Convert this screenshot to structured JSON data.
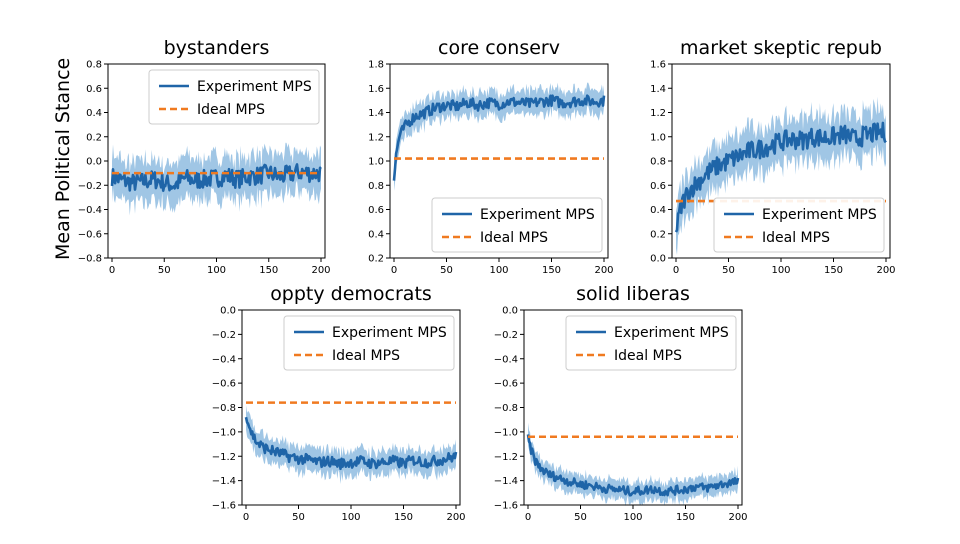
{
  "figure": {
    "ylabel": "Mean Political Stance"
  },
  "legend": {
    "experiment": "Experiment MPS",
    "ideal": "Ideal MPS"
  },
  "colors": {
    "experiment_line": "#1f65a8",
    "band": "#8fbce0",
    "ideal_line": "#f07a20",
    "axis": "#000000"
  },
  "chart_data": [
    {
      "type": "line",
      "title": "bystanders",
      "xlim": [
        0,
        200
      ],
      "ylim": [
        -0.8,
        0.8
      ],
      "xticks": [
        0,
        50,
        100,
        150,
        200
      ],
      "yticks": [
        -0.8,
        -0.6,
        -0.4,
        -0.2,
        0.0,
        0.2,
        0.4,
        0.6,
        0.8
      ],
      "ytick_labels": [
        "−0.8",
        "−0.6",
        "−0.4",
        "−0.2",
        "0.0",
        "0.2",
        "0.4",
        "0.6",
        "0.8"
      ],
      "legend_position": "top-right",
      "series": [
        {
          "name": "Experiment MPS",
          "x": [
            0,
            10,
            20,
            30,
            40,
            50,
            60,
            70,
            80,
            90,
            100,
            110,
            120,
            130,
            140,
            150,
            160,
            170,
            180,
            190,
            200
          ],
          "values": [
            -0.13,
            -0.16,
            -0.18,
            -0.17,
            -0.15,
            -0.18,
            -0.2,
            -0.14,
            -0.16,
            -0.15,
            -0.14,
            -0.12,
            -0.15,
            -0.13,
            -0.12,
            -0.1,
            -0.13,
            -0.11,
            -0.09,
            -0.1,
            -0.1
          ],
          "band_halfwidth": 0.17
        },
        {
          "name": "Ideal MPS",
          "x": [
            0,
            200
          ],
          "values": [
            -0.1,
            -0.1
          ]
        }
      ]
    },
    {
      "type": "line",
      "title": "core conserv",
      "xlim": [
        0,
        200
      ],
      "ylim": [
        0.2,
        1.8
      ],
      "xticks": [
        0,
        50,
        100,
        150,
        200
      ],
      "yticks": [
        0.2,
        0.4,
        0.6,
        0.8,
        1.0,
        1.2,
        1.4,
        1.6,
        1.8
      ],
      "ytick_labels": [
        "0.2",
        "0.4",
        "0.6",
        "0.8",
        "1.0",
        "1.2",
        "1.4",
        "1.6",
        "1.8"
      ],
      "legend_position": "bottom-right",
      "series": [
        {
          "name": "Experiment MPS",
          "x": [
            0,
            2,
            5,
            10,
            15,
            20,
            30,
            40,
            50,
            60,
            70,
            80,
            90,
            100,
            110,
            120,
            130,
            140,
            150,
            160,
            170,
            180,
            190,
            200
          ],
          "values": [
            0.85,
            1.05,
            1.2,
            1.28,
            1.33,
            1.37,
            1.4,
            1.44,
            1.46,
            1.45,
            1.48,
            1.46,
            1.48,
            1.47,
            1.49,
            1.48,
            1.47,
            1.49,
            1.5,
            1.48,
            1.49,
            1.5,
            1.49,
            1.5
          ],
          "band_halfwidth": 0.1
        },
        {
          "name": "Ideal MPS",
          "x": [
            0,
            200
          ],
          "values": [
            1.02,
            1.02
          ]
        }
      ]
    },
    {
      "type": "line",
      "title": "market skeptic repub",
      "xlim": [
        0,
        200
      ],
      "ylim": [
        0.0,
        1.6
      ],
      "xticks": [
        0,
        50,
        100,
        150,
        200
      ],
      "yticks": [
        0.0,
        0.2,
        0.4,
        0.6,
        0.8,
        1.0,
        1.2,
        1.4,
        1.6
      ],
      "ytick_labels": [
        "0.0",
        "0.2",
        "0.4",
        "0.6",
        "0.8",
        "1.0",
        "1.2",
        "1.4",
        "1.6"
      ],
      "legend_position": "bottom-right",
      "series": [
        {
          "name": "Experiment MPS",
          "x": [
            0,
            3,
            6,
            10,
            15,
            20,
            30,
            40,
            50,
            60,
            70,
            80,
            90,
            100,
            110,
            120,
            130,
            140,
            150,
            160,
            170,
            180,
            190,
            200
          ],
          "values": [
            0.2,
            0.35,
            0.45,
            0.52,
            0.58,
            0.62,
            0.7,
            0.76,
            0.8,
            0.84,
            0.88,
            0.9,
            0.93,
            0.96,
            0.98,
            0.97,
            1.0,
            0.99,
            1.0,
            1.02,
            0.98,
            1.01,
            1.03,
            1.04
          ],
          "band_halfwidth": 0.18
        },
        {
          "name": "Ideal MPS",
          "x": [
            0,
            200
          ],
          "values": [
            0.47,
            0.47
          ]
        }
      ]
    },
    {
      "type": "line",
      "title": "oppty democrats",
      "xlim": [
        0,
        200
      ],
      "ylim": [
        -1.6,
        0.0
      ],
      "xticks": [
        0,
        50,
        100,
        150,
        200
      ],
      "yticks": [
        -1.6,
        -1.4,
        -1.2,
        -1.0,
        -0.8,
        -0.6,
        -0.4,
        -0.2,
        0.0
      ],
      "ytick_labels": [
        "−1.6",
        "−1.4",
        "−1.2",
        "−1.0",
        "−0.8",
        "−0.6",
        "−0.4",
        "−0.2",
        "0.0"
      ],
      "legend_position": "top-right",
      "series": [
        {
          "name": "Experiment MPS",
          "x": [
            0,
            3,
            6,
            10,
            15,
            20,
            30,
            40,
            50,
            60,
            70,
            80,
            90,
            100,
            110,
            120,
            130,
            140,
            150,
            160,
            170,
            180,
            190,
            200
          ],
          "values": [
            -0.85,
            -0.95,
            -1.02,
            -1.08,
            -1.12,
            -1.14,
            -1.17,
            -1.2,
            -1.22,
            -1.23,
            -1.25,
            -1.24,
            -1.26,
            -1.25,
            -1.24,
            -1.26,
            -1.25,
            -1.24,
            -1.26,
            -1.23,
            -1.25,
            -1.24,
            -1.22,
            -1.2
          ],
          "band_halfwidth": 0.1
        },
        {
          "name": "Ideal MPS",
          "x": [
            0,
            200
          ],
          "values": [
            -0.76,
            -0.76
          ]
        }
      ]
    },
    {
      "type": "line",
      "title": "solid liberas",
      "xlim": [
        0,
        200
      ],
      "ylim": [
        -1.6,
        0.0
      ],
      "xticks": [
        0,
        50,
        100,
        150,
        200
      ],
      "yticks": [
        -1.6,
        -1.4,
        -1.2,
        -1.0,
        -0.8,
        -0.6,
        -0.4,
        -0.2,
        0.0
      ],
      "ytick_labels": [
        "−1.6",
        "−1.4",
        "−1.2",
        "−1.0",
        "−0.8",
        "−0.6",
        "−0.4",
        "−0.2",
        "0.0"
      ],
      "legend_position": "top-right",
      "series": [
        {
          "name": "Experiment MPS",
          "x": [
            0,
            3,
            6,
            10,
            15,
            20,
            30,
            40,
            50,
            60,
            70,
            80,
            90,
            100,
            110,
            120,
            130,
            140,
            150,
            160,
            170,
            180,
            190,
            200
          ],
          "values": [
            -1.05,
            -1.15,
            -1.22,
            -1.28,
            -1.32,
            -1.35,
            -1.38,
            -1.41,
            -1.43,
            -1.44,
            -1.46,
            -1.47,
            -1.48,
            -1.49,
            -1.48,
            -1.47,
            -1.49,
            -1.48,
            -1.47,
            -1.45,
            -1.46,
            -1.44,
            -1.42,
            -1.41
          ],
          "band_halfwidth": 0.08
        },
        {
          "name": "Ideal MPS",
          "x": [
            0,
            200
          ],
          "values": [
            -1.04,
            -1.04
          ]
        }
      ]
    }
  ]
}
